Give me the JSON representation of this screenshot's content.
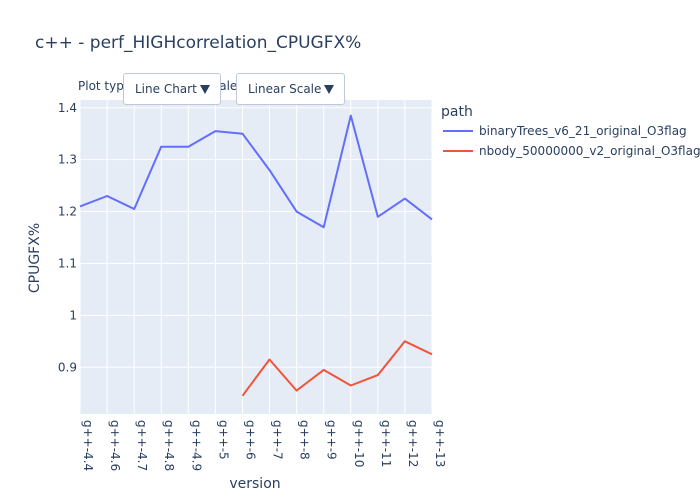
{
  "title": "c++ - perf_HIGHcorrelation_CPUGFX%",
  "controls": {
    "plot_type_label": "Plot type:",
    "plot_type_value": "Line Chart",
    "scale_label": "Scale:",
    "scale_value": "Linear Scale"
  },
  "legend": {
    "title": "path"
  },
  "colors": {
    "plot_bg": "#e5ecf6",
    "grid": "#ffffff",
    "text": "#2a3f5f"
  },
  "chart_data": {
    "type": "line",
    "title": "c++ - perf_HIGHcorrelation_CPUGFX%",
    "xlabel": "version",
    "ylabel": "CPUGFX%",
    "categories": [
      "g++-4.4",
      "g++-4.6",
      "g++-4.7",
      "g++-4.8",
      "g++-4.9",
      "g++-5",
      "g++-6",
      "g++-7",
      "g++-8",
      "g++-9",
      "g++-10",
      "g++-11",
      "g++-12",
      "g++-13"
    ],
    "y_ticks": [
      0.9,
      1,
      1.1,
      1.2,
      1.3,
      1.4
    ],
    "y_tick_labels": [
      "0.9",
      "1",
      "1.1",
      "1.2",
      "1.3",
      "1.4"
    ],
    "ylim": [
      0.81,
      1.415
    ],
    "grid": true,
    "legend_position": "right",
    "series": [
      {
        "name": "binaryTrees_v6_21_original_O3flag",
        "color": "#636efa",
        "values": [
          1.21,
          1.23,
          1.205,
          1.325,
          1.325,
          1.355,
          1.35,
          1.28,
          1.2,
          1.17,
          1.385,
          1.19,
          1.225,
          1.185
        ]
      },
      {
        "name": "nbody_50000000_v2_original_O3flag",
        "color": "#ef553b",
        "values": [
          null,
          null,
          null,
          null,
          null,
          null,
          0.845,
          0.915,
          0.855,
          0.895,
          0.865,
          0.885,
          0.95,
          0.925
        ]
      }
    ]
  }
}
